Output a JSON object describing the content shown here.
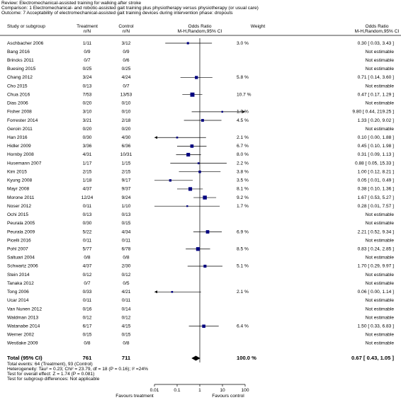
{
  "chart_data": {
    "type": "forest",
    "header_lines": [
      "Review:  Electromechanical-assisted training for walking after stroke",
      "Comparison:  1 Electromechanical- and robotic-assisted gait training plus physiotherapy versus physiotherapy (or usual care)",
      "Outcome:  7 Acceptability of electromechanical-assisted gait training devices during intervention phase: dropouts"
    ],
    "columns": {
      "study": "Study or subgroup",
      "treatment": "Treatment",
      "treatment_unit": "n/N",
      "control": "Control",
      "control_unit": "n/N",
      "plot": "Odds Ratio",
      "plot_method": "M-H,Random,95% CI",
      "weight": "Weight",
      "result": "Odds Ratio",
      "result_method": "M-H,Random,95% CI"
    },
    "studies": [
      {
        "name": "Aschbacher 2006",
        "treatment": "1/11",
        "control": "3/12",
        "weight": 3.0,
        "weight_label": "3.0 %",
        "or": 0.3,
        "lower": 0.03,
        "upper": 3.43,
        "result": "0.30 [ 0.03, 3.43 ]"
      },
      {
        "name": "Bang 2016",
        "treatment": "0/9",
        "control": "0/9",
        "result": "Not estimable"
      },
      {
        "name": "Brincks 2011",
        "treatment": "0/7",
        "control": "0/6",
        "result": "Not estimable"
      },
      {
        "name": "Buesing 2015",
        "treatment": "0/25",
        "control": "0/25",
        "result": "Not estimable"
      },
      {
        "name": "Chang 2012",
        "treatment": "3/24",
        "control": "4/24",
        "weight": 5.8,
        "weight_label": "5.8 %",
        "or": 0.71,
        "lower": 0.14,
        "upper": 3.6,
        "result": "0.71 [ 0.14, 3.60 ]"
      },
      {
        "name": "Cho 2015",
        "treatment": "0/13",
        "control": "0/7",
        "result": "Not estimable"
      },
      {
        "name": "Chua 2016",
        "treatment": "7/53",
        "control": "13/53",
        "weight": 10.7,
        "weight_label": "10.7 %",
        "or": 0.47,
        "lower": 0.17,
        "upper": 1.29,
        "result": "0.47 [ 0.17, 1.29 ]"
      },
      {
        "name": "Dias 2006",
        "treatment": "0/20",
        "control": "0/10",
        "result": "Not estimable"
      },
      {
        "name": "Fisher 2008",
        "treatment": "3/10",
        "control": "0/10",
        "weight": 1.9,
        "weight_label": "1.9 %",
        "or": 9.8,
        "lower": 0.44,
        "upper": 219.25,
        "result": "9.80 [ 0.44, 219.25 ]"
      },
      {
        "name": "Forrester 2014",
        "treatment": "3/21",
        "control": "2/18",
        "weight": 4.5,
        "weight_label": "4.5 %",
        "or": 1.33,
        "lower": 0.2,
        "upper": 9.02,
        "result": "1.33 [ 0.20, 9.02 ]"
      },
      {
        "name": "Geroin 2011",
        "treatment": "0/20",
        "control": "0/20",
        "result": "Not estimable"
      },
      {
        "name": "Han 2016",
        "treatment": "0/30",
        "control": "4/30",
        "weight": 2.1,
        "weight_label": "2.1 %",
        "or": 0.1,
        "lower": 0,
        "upper": 1.88,
        "result": "0.10 [ 0.00, 1.88 ]"
      },
      {
        "name": "Hidler 2009",
        "treatment": "3/36",
        "control": "6/36",
        "weight": 6.7,
        "weight_label": "6.7 %",
        "or": 0.45,
        "lower": 0.1,
        "upper": 1.98,
        "result": "0.45 [ 0.10, 1.98 ]"
      },
      {
        "name": "Hornby 2008",
        "treatment": "4/31",
        "control": "10/31",
        "weight": 8.0,
        "weight_label": "8.0 %",
        "or": 0.31,
        "lower": 0.09,
        "upper": 1.13,
        "result": "0.31 [ 0.09, 1.13 ]"
      },
      {
        "name": "Husemann 2007",
        "treatment": "1/17",
        "control": "1/15",
        "weight": 2.2,
        "weight_label": "2.2 %",
        "or": 0.88,
        "lower": 0.05,
        "upper": 15.33,
        "result": "0.88 [ 0.05, 15.33 ]"
      },
      {
        "name": "Kim 2015",
        "treatment": "2/15",
        "control": "2/15",
        "weight": 3.8,
        "weight_label": "3.8 %",
        "or": 1.0,
        "lower": 0.12,
        "upper": 8.21,
        "result": "1.00 [ 0.12, 8.21 ]"
      },
      {
        "name": "Kyung 2008",
        "treatment": "1/18",
        "control": "9/17",
        "weight": 3.5,
        "weight_label": "3.5 %",
        "or": 0.05,
        "lower": 0.01,
        "upper": 0.49,
        "result": "0.05 [ 0.01, 0.49 ]"
      },
      {
        "name": "Mayr 2008",
        "treatment": "4/37",
        "control": "9/37",
        "weight": 8.1,
        "weight_label": "8.1 %",
        "or": 0.38,
        "lower": 0.1,
        "upper": 1.36,
        "result": "0.38 [ 0.10, 1.36 ]"
      },
      {
        "name": "Morone 2011",
        "treatment": "12/24",
        "control": "9/24",
        "weight": 9.2,
        "weight_label": "9.2 %",
        "or": 1.67,
        "lower": 0.53,
        "upper": 5.27,
        "result": "1.67 [ 0.53, 5.27 ]"
      },
      {
        "name": "Noser 2012",
        "treatment": "0/11",
        "control": "1/10",
        "weight": 1.7,
        "weight_label": "1.7 %",
        "or": 0.28,
        "lower": 0.01,
        "upper": 7.57,
        "result": "0.28 [ 0.01, 7.57 ]"
      },
      {
        "name": "Ochi 2015",
        "treatment": "0/13",
        "control": "0/13",
        "result": "Not estimable"
      },
      {
        "name": "Peurala 2005",
        "treatment": "0/30",
        "control": "0/15",
        "result": "Not estimable"
      },
      {
        "name": "Peurala 2009",
        "treatment": "5/22",
        "control": "4/34",
        "weight": 6.9,
        "weight_label": "6.9 %",
        "or": 2.21,
        "lower": 0.52,
        "upper": 9.34,
        "result": "2.21 [ 0.52, 9.34 ]"
      },
      {
        "name": "Picelli 2016",
        "treatment": "0/11",
        "control": "0/11",
        "result": "Not estimable"
      },
      {
        "name": "Pohl 2007",
        "treatment": "5/77",
        "control": "6/78",
        "weight": 8.5,
        "weight_label": "8.5 %",
        "or": 0.83,
        "lower": 0.24,
        "upper": 2.85,
        "result": "0.83 [ 0.24, 2.85 ]"
      },
      {
        "name": "Saltuari 2004",
        "treatment": "0/8",
        "control": "0/8",
        "result": "Not estimable"
      },
      {
        "name": "Schwartz 2006",
        "treatment": "4/37",
        "control": "2/30",
        "weight": 5.1,
        "weight_label": "5.1 %",
        "or": 1.7,
        "lower": 0.29,
        "upper": 9.97,
        "result": "1.70 [ 0.29, 9.97 ]"
      },
      {
        "name": "Stein 2014",
        "treatment": "0/12",
        "control": "0/12",
        "result": "Not estimable"
      },
      {
        "name": "Tanaka 2012",
        "treatment": "0/7",
        "control": "0/5",
        "result": "Not estimable"
      },
      {
        "name": "Tong 2006",
        "treatment": "0/33",
        "control": "4/21",
        "weight": 2.1,
        "weight_label": "2.1 %",
        "or": 0.06,
        "lower": 0,
        "upper": 1.14,
        "result": "0.06 [ 0.00, 1.14 ]"
      },
      {
        "name": "Ucar 2014",
        "treatment": "0/11",
        "control": "0/11",
        "result": "Not estimable"
      },
      {
        "name": "Van Nunen 2012",
        "treatment": "0/16",
        "control": "0/14",
        "result": "Not estimable"
      },
      {
        "name": "Waldman 2013",
        "treatment": "0/12",
        "control": "0/12",
        "result": "Not estimable"
      },
      {
        "name": "Watanabe 2014",
        "treatment": "6/17",
        "control": "4/15",
        "weight": 6.4,
        "weight_label": "6.4 %",
        "or": 1.5,
        "lower": 0.33,
        "upper": 6.83,
        "result": "1.50 [ 0.33, 6.83 ]"
      },
      {
        "name": "Werner 2002",
        "treatment": "0/15",
        "control": "0/15",
        "result": "Not estimable"
      },
      {
        "name": "Westlake 2009",
        "treatment": "0/8",
        "control": "0/8",
        "result": "Not estimable"
      }
    ],
    "total": {
      "name": "Total (95% CI)",
      "treatment": 761,
      "control": 711,
      "weight": 100.0,
      "weight_label": "100.0 %",
      "or": 0.67,
      "lower": 0.43,
      "upper": 1.05,
      "result": "0.67 [ 0.43, 1.05 ]"
    },
    "footnotes": [
      "Total events: 64 (Treatment), 93 (Control)",
      "Heterogeneity: Tau² = 0.23; Chi² = 23.79, df = 18 (P = 0.16); I² =24%",
      "Test for overall effect: Z = 1.74 (P = 0.081)",
      "Test for subgroup differences: Not applicable"
    ],
    "log_x": true,
    "xlim": [
      0.01,
      100
    ],
    "xticks": [
      0.01,
      0.1,
      1,
      10,
      100
    ],
    "favours_left": "Favours treatment",
    "favours_right": "Favours control",
    "color": "#00007f"
  }
}
